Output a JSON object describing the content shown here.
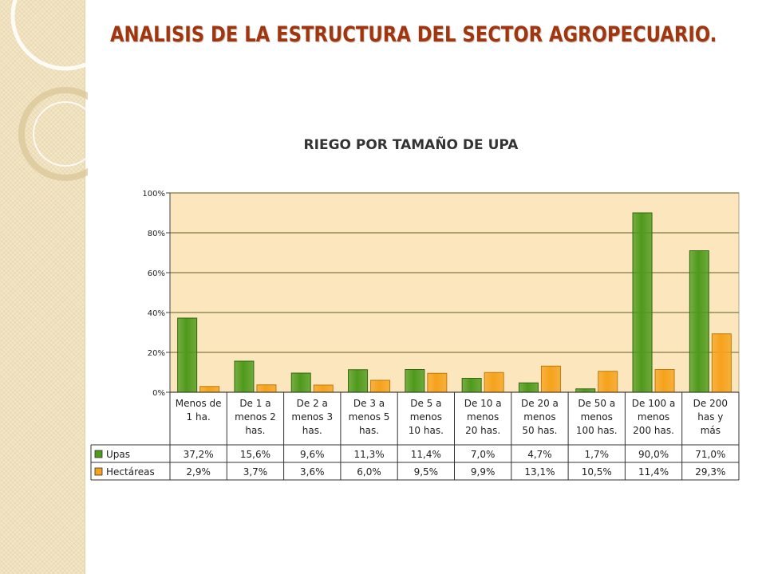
{
  "slide": {
    "title": "ANALISIS  DE LA ESTRUCTURA DEL SECTOR AGROPECUARIO."
  },
  "colors": {
    "title": "#a0360f",
    "plot_background": "#fbe6bd",
    "gridline": "#807a44",
    "upas": "#4e9a1c",
    "hectareas": "#f6a21b"
  },
  "chart_data": {
    "type": "bar",
    "title": "RIEGO POR TAMAÑO DE UPA",
    "categories": [
      [
        "Menos de",
        "1 ha."
      ],
      [
        "De 1 a",
        "menos 2",
        "has."
      ],
      [
        "De 2 a",
        "menos 3",
        "has."
      ],
      [
        "De 3 a",
        "menos 5",
        "has."
      ],
      [
        "De 5 a",
        "menos",
        "10 has."
      ],
      [
        "De 10 a",
        "menos",
        "20 has."
      ],
      [
        "De 20 a",
        "menos",
        "50 has."
      ],
      [
        "De 50 a",
        "menos",
        "100 has."
      ],
      [
        "De 100 a",
        "menos",
        "200 has."
      ],
      [
        "De 200",
        "has y",
        "más"
      ]
    ],
    "series": [
      {
        "name": "Upas",
        "color": "#4e9a1c",
        "values": [
          37.2,
          15.6,
          9.6,
          11.3,
          11.4,
          7.0,
          4.7,
          1.7,
          90.0,
          71.0
        ],
        "labels": [
          "37,2%",
          "15,6%",
          "9,6%",
          "11,3%",
          "11,4%",
          "7,0%",
          "4,7%",
          "1,7%",
          "90,0%",
          "71,0%"
        ]
      },
      {
        "name": "Hectáreas",
        "color": "#f6a21b",
        "values": [
          2.9,
          3.7,
          3.6,
          6.0,
          9.5,
          9.9,
          13.1,
          10.5,
          11.4,
          29.3
        ],
        "labels": [
          "2,9%",
          "3,7%",
          "3,6%",
          "6,0%",
          "9,5%",
          "9,9%",
          "13,1%",
          "10,5%",
          "11,4%",
          "29,3%"
        ]
      }
    ],
    "yticks": [
      "0%",
      "20%",
      "40%",
      "60%",
      "80%",
      "100%"
    ],
    "ylim": [
      0,
      100
    ],
    "grid": true,
    "legend": "data-table"
  }
}
